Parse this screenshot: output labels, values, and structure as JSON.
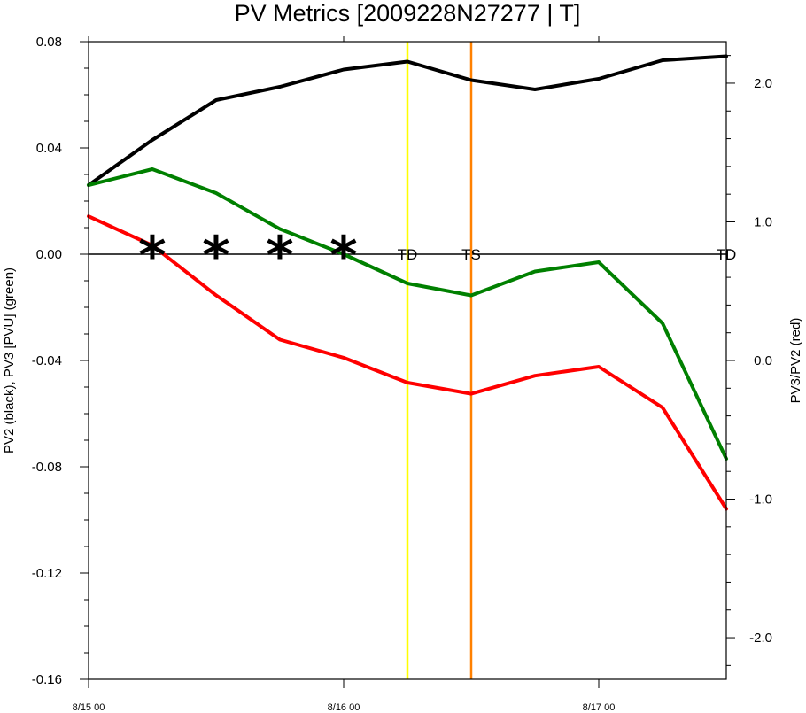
{
  "chart_data": {
    "type": "line",
    "title": "PV Metrics [2009228N27277 | T]",
    "ylabel_left": "PV2 (black), PV3 [PVU] (green)",
    "ylabel_right": "PV3/PV2 (red)",
    "x_start": "8/15 00",
    "x_step_hours": 6,
    "x": [
      0,
      6,
      12,
      18,
      24,
      30,
      36,
      42,
      48,
      54,
      60
    ],
    "xticks": [
      {
        "hour": 0,
        "label": "8/15 00"
      },
      {
        "hour": 24,
        "label": "8/16 00"
      },
      {
        "hour": 48,
        "label": "8/17 00"
      }
    ],
    "xlim": [
      0,
      60
    ],
    "ylim_left": [
      -0.16,
      0.08
    ],
    "yticks_left": [
      {
        "value": 0.08,
        "label": "0.08"
      },
      {
        "value": 0.04,
        "label": "0.04"
      },
      {
        "value": 0.0,
        "label": "0.00"
      },
      {
        "value": -0.04,
        "label": "-0.04"
      },
      {
        "value": -0.08,
        "label": "-0.08"
      },
      {
        "value": -0.12,
        "label": "-0.12"
      },
      {
        "value": -0.16,
        "label": "-0.16"
      }
    ],
    "ylim_right": [
      -2.3,
      2.3
    ],
    "yticks_right": [
      {
        "value": 2.0,
        "label": "2.0"
      },
      {
        "value": 1.0,
        "label": "1.0"
      },
      {
        "value": 0.0,
        "label": "0.0"
      },
      {
        "value": -1.0,
        "label": "-1.0"
      },
      {
        "value": -2.0,
        "label": "-2.0"
      }
    ],
    "series": [
      {
        "name": "PV2",
        "axis": "left",
        "color": "#000000",
        "values": [
          0.026,
          0.043,
          0.058,
          0.063,
          0.0695,
          0.0725,
          0.0655,
          0.062,
          0.066,
          0.073,
          0.0745
        ]
      },
      {
        "name": "PV3",
        "axis": "left",
        "color": "#008000",
        "values": [
          0.026,
          0.032,
          0.023,
          0.0095,
          0.0,
          -0.011,
          -0.0155,
          -0.0065,
          -0.003,
          -0.026,
          -0.077
        ]
      },
      {
        "name": "PV3/PV2",
        "axis": "right",
        "color": "#ff0000",
        "values": [
          1.04,
          0.83,
          0.47,
          0.15,
          0.02,
          -0.16,
          -0.24,
          -0.11,
          -0.045,
          -0.34,
          -1.07
        ]
      }
    ],
    "vertical_lines": [
      {
        "hour": 30,
        "color": "#ffff00"
      },
      {
        "hour": 36,
        "color": "#ff8000"
      }
    ],
    "zero_line": true,
    "stage_labels": [
      {
        "hour": 30,
        "label": "TD"
      },
      {
        "hour": 36,
        "label": "TS"
      },
      {
        "hour": 60,
        "label": "TD"
      }
    ],
    "star_markers": [
      {
        "hour": 6,
        "label": "*"
      },
      {
        "hour": 12,
        "label": "*"
      },
      {
        "hour": 18,
        "label": "*"
      },
      {
        "hour": 24,
        "label": "*"
      }
    ]
  }
}
